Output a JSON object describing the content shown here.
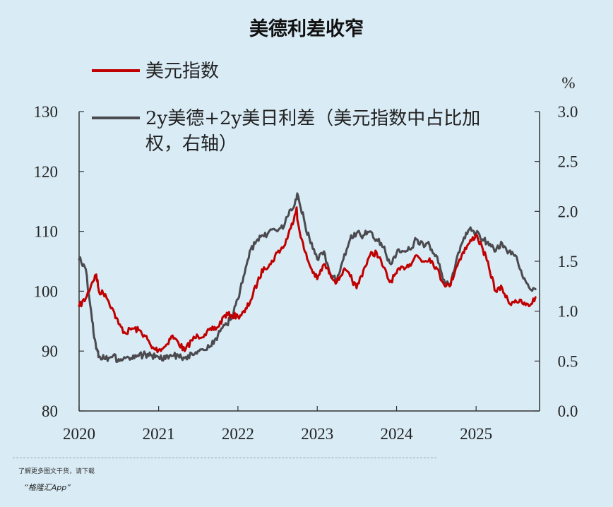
{
  "footer": {
    "line1": "了解更多图文干货，请下载",
    "line2": "“格隆汇App”"
  },
  "chart_data": {
    "type": "line",
    "title": "美德利差收窄",
    "x": {
      "tick_labels": [
        "2020",
        "2021",
        "2022",
        "2023",
        "2024",
        "2025"
      ],
      "range": [
        "2020-01",
        "2025-10"
      ]
    },
    "y_left": {
      "range": [
        80,
        130
      ],
      "ticks": [
        130,
        120,
        110,
        100,
        90,
        80
      ]
    },
    "y_right": {
      "unit": "%",
      "range": [
        0.0,
        3.0
      ],
      "ticks": [
        "3.0",
        "2.5",
        "2.0",
        "1.5",
        "1.0",
        "0.5",
        "0.0"
      ]
    },
    "legend_position": "top-left",
    "series": [
      {
        "name": "美元指数",
        "axis": "left",
        "color": "#c00000",
        "points": [
          [
            "2020-01",
            97.5
          ],
          [
            "2020-02",
            98.8
          ],
          [
            "2020-03",
            101.5
          ],
          [
            "2020-03-20",
            102.8
          ],
          [
            "2020-04",
            100.0
          ],
          [
            "2020-05",
            99.5
          ],
          [
            "2020-06",
            97.2
          ],
          [
            "2020-07",
            94.5
          ],
          [
            "2020-08",
            93.0
          ],
          [
            "2020-09",
            93.8
          ],
          [
            "2020-10",
            93.5
          ],
          [
            "2020-11",
            92.5
          ],
          [
            "2020-12",
            90.5
          ],
          [
            "2021-01",
            90.2
          ],
          [
            "2021-02",
            90.8
          ],
          [
            "2021-03",
            92.5
          ],
          [
            "2021-04",
            91.5
          ],
          [
            "2021-05",
            90.0
          ],
          [
            "2021-06",
            91.8
          ],
          [
            "2021-07",
            92.5
          ],
          [
            "2021-08",
            92.8
          ],
          [
            "2021-09",
            93.5
          ],
          [
            "2021-10",
            94.0
          ],
          [
            "2021-11",
            96.0
          ],
          [
            "2021-12",
            96.0
          ],
          [
            "2022-01",
            95.8
          ],
          [
            "2022-02",
            96.5
          ],
          [
            "2022-03",
            98.5
          ],
          [
            "2022-04",
            101.5
          ],
          [
            "2022-05",
            104.0
          ],
          [
            "2022-06",
            104.5
          ],
          [
            "2022-07",
            106.5
          ],
          [
            "2022-08",
            107.5
          ],
          [
            "2022-09",
            110.5
          ],
          [
            "2022-09-28",
            114.0
          ],
          [
            "2022-10",
            112.0
          ],
          [
            "2022-11",
            107.0
          ],
          [
            "2022-12",
            104.0
          ],
          [
            "2023-01",
            102.0
          ],
          [
            "2023-02",
            104.5
          ],
          [
            "2023-03",
            103.0
          ],
          [
            "2023-04",
            101.5
          ],
          [
            "2023-05",
            103.5
          ],
          [
            "2023-06",
            102.5
          ],
          [
            "2023-07",
            100.5
          ],
          [
            "2023-08",
            103.5
          ],
          [
            "2023-09",
            106.0
          ],
          [
            "2023-10",
            106.5
          ],
          [
            "2023-11",
            104.0
          ],
          [
            "2023-12",
            101.5
          ],
          [
            "2024-01",
            103.0
          ],
          [
            "2024-02",
            104.0
          ],
          [
            "2024-03",
            104.5
          ],
          [
            "2024-04",
            106.0
          ],
          [
            "2024-05",
            105.0
          ],
          [
            "2024-06",
            105.5
          ],
          [
            "2024-07",
            104.0
          ],
          [
            "2024-08",
            101.5
          ],
          [
            "2024-09",
            100.8
          ],
          [
            "2024-10",
            104.0
          ],
          [
            "2024-11",
            106.5
          ],
          [
            "2024-12",
            108.0
          ],
          [
            "2025-01",
            109.5
          ],
          [
            "2025-02",
            107.0
          ],
          [
            "2025-03",
            104.0
          ],
          [
            "2025-04",
            100.0
          ],
          [
            "2025-05",
            100.5
          ],
          [
            "2025-06",
            98.0
          ],
          [
            "2025-07",
            98.5
          ],
          [
            "2025-08",
            98.0
          ],
          [
            "2025-09",
            97.5
          ],
          [
            "2025-10",
            99.0
          ]
        ]
      },
      {
        "name": "2y美德+2y美日利差（美元指数中占比加权，右轴）",
        "axis": "right",
        "color": "#4a4a4f",
        "points": [
          [
            "2020-01",
            1.52
          ],
          [
            "2020-02",
            1.42
          ],
          [
            "2020-03",
            0.9
          ],
          [
            "2020-03-20",
            0.62
          ],
          [
            "2020-04",
            0.55
          ],
          [
            "2020-05",
            0.52
          ],
          [
            "2020-06",
            0.54
          ],
          [
            "2020-07",
            0.52
          ],
          [
            "2020-08",
            0.53
          ],
          [
            "2020-09",
            0.52
          ],
          [
            "2020-10",
            0.55
          ],
          [
            "2020-11",
            0.57
          ],
          [
            "2020-12",
            0.56
          ],
          [
            "2021-01",
            0.54
          ],
          [
            "2021-02",
            0.52
          ],
          [
            "2021-03",
            0.55
          ],
          [
            "2021-04",
            0.56
          ],
          [
            "2021-05",
            0.53
          ],
          [
            "2021-06",
            0.58
          ],
          [
            "2021-07",
            0.6
          ],
          [
            "2021-08",
            0.61
          ],
          [
            "2021-09",
            0.65
          ],
          [
            "2021-10",
            0.76
          ],
          [
            "2021-11",
            0.86
          ],
          [
            "2021-12",
            0.92
          ],
          [
            "2022-01",
            1.12
          ],
          [
            "2022-02",
            1.38
          ],
          [
            "2022-03",
            1.62
          ],
          [
            "2022-04",
            1.72
          ],
          [
            "2022-05",
            1.75
          ],
          [
            "2022-06",
            1.82
          ],
          [
            "2022-07",
            1.8
          ],
          [
            "2022-08",
            1.85
          ],
          [
            "2022-09",
            2.02
          ],
          [
            "2022-09-28",
            2.12
          ],
          [
            "2022-10",
            2.18
          ],
          [
            "2022-11",
            1.92
          ],
          [
            "2022-12",
            1.68
          ],
          [
            "2023-01",
            1.52
          ],
          [
            "2023-02",
            1.6
          ],
          [
            "2023-03",
            1.38
          ],
          [
            "2023-04",
            1.3
          ],
          [
            "2023-05",
            1.52
          ],
          [
            "2023-06",
            1.72
          ],
          [
            "2023-07",
            1.78
          ],
          [
            "2023-08",
            1.76
          ],
          [
            "2023-09",
            1.8
          ],
          [
            "2023-10",
            1.72
          ],
          [
            "2023-11",
            1.64
          ],
          [
            "2023-12",
            1.48
          ],
          [
            "2024-01",
            1.58
          ],
          [
            "2024-02",
            1.6
          ],
          [
            "2024-03",
            1.62
          ],
          [
            "2024-04",
            1.72
          ],
          [
            "2024-05",
            1.68
          ],
          [
            "2024-06",
            1.66
          ],
          [
            "2024-07",
            1.56
          ],
          [
            "2024-08",
            1.32
          ],
          [
            "2024-09",
            1.26
          ],
          [
            "2024-10",
            1.5
          ],
          [
            "2024-11",
            1.7
          ],
          [
            "2024-12",
            1.82
          ],
          [
            "2025-01",
            1.78
          ],
          [
            "2025-02",
            1.72
          ],
          [
            "2025-03",
            1.66
          ],
          [
            "2025-04",
            1.6
          ],
          [
            "2025-05",
            1.68
          ],
          [
            "2025-06",
            1.6
          ],
          [
            "2025-07",
            1.56
          ],
          [
            "2025-08",
            1.36
          ],
          [
            "2025-09",
            1.24
          ],
          [
            "2025-10",
            1.22
          ]
        ]
      }
    ]
  }
}
